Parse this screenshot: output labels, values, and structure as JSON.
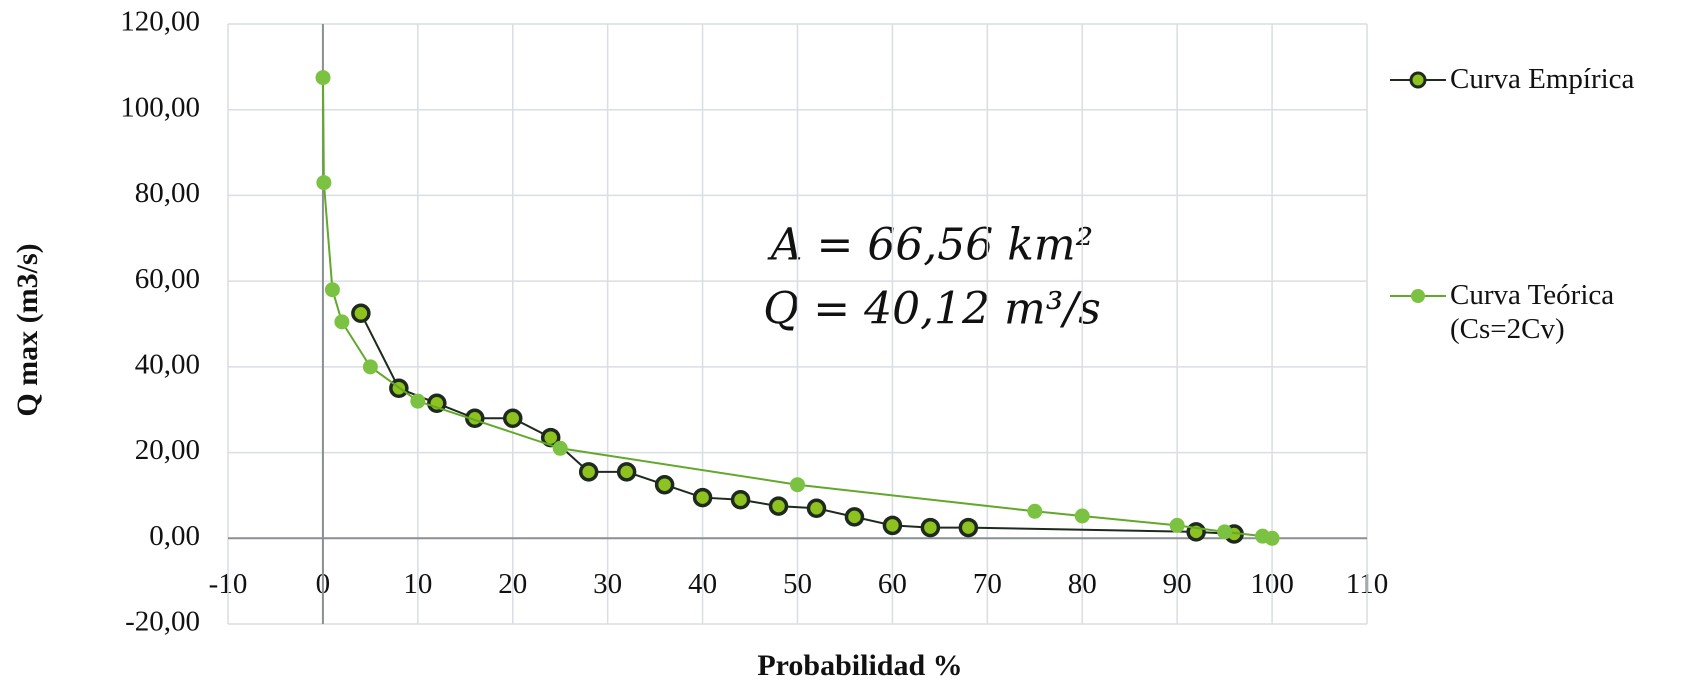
{
  "chart_data": {
    "type": "line",
    "x_label": "Probabilidad %",
    "y_label": "Q max  (m3/s)",
    "annotations": [
      "A = 66,56 km²",
      "Q = 40,12 m³/s"
    ],
    "xlim": [
      -10,
      110
    ],
    "xticks": [
      -10,
      0,
      10,
      20,
      30,
      40,
      50,
      60,
      70,
      80,
      90,
      100,
      110
    ],
    "ylim": [
      -20,
      120
    ],
    "yticks": [
      {
        "value": -20,
        "label": "-20,00"
      },
      {
        "value": 0,
        "label": "0,00"
      },
      {
        "value": 20,
        "label": "20,00"
      },
      {
        "value": 40,
        "label": "40,00"
      },
      {
        "value": 60,
        "label": "60,00"
      },
      {
        "value": 80,
        "label": "80,00"
      },
      {
        "value": 100,
        "label": "100,00"
      },
      {
        "value": 120,
        "label": "120,00"
      }
    ],
    "grid": true,
    "legend": "right",
    "series": [
      {
        "name": "Curva Empírica",
        "color": "#1e2a1e",
        "marker_fill": "#8dc21f",
        "x": [
          4,
          8,
          12,
          16,
          20,
          24,
          28,
          32,
          36,
          40,
          44,
          48,
          52,
          56,
          60,
          64,
          68,
          92,
          96
        ],
        "values": [
          52.5,
          35,
          31.5,
          28,
          28,
          23.5,
          15.5,
          15.5,
          12.5,
          9.5,
          9,
          7.5,
          7,
          5,
          3,
          2.5,
          2.5,
          1.5,
          1
        ]
      },
      {
        "name": "Curva Teórica (Cs=2Cv)",
        "color": "#62a82a",
        "marker_fill": "#7cc242",
        "x": [
          0.01,
          0.1,
          1,
          2,
          5,
          10,
          25,
          50,
          75,
          80,
          90,
          95,
          99,
          100
        ],
        "values": [
          107.5,
          83,
          58,
          50.5,
          40,
          32,
          21,
          12.5,
          6.3,
          5.2,
          3,
          1.5,
          0.5,
          0
        ]
      }
    ]
  }
}
